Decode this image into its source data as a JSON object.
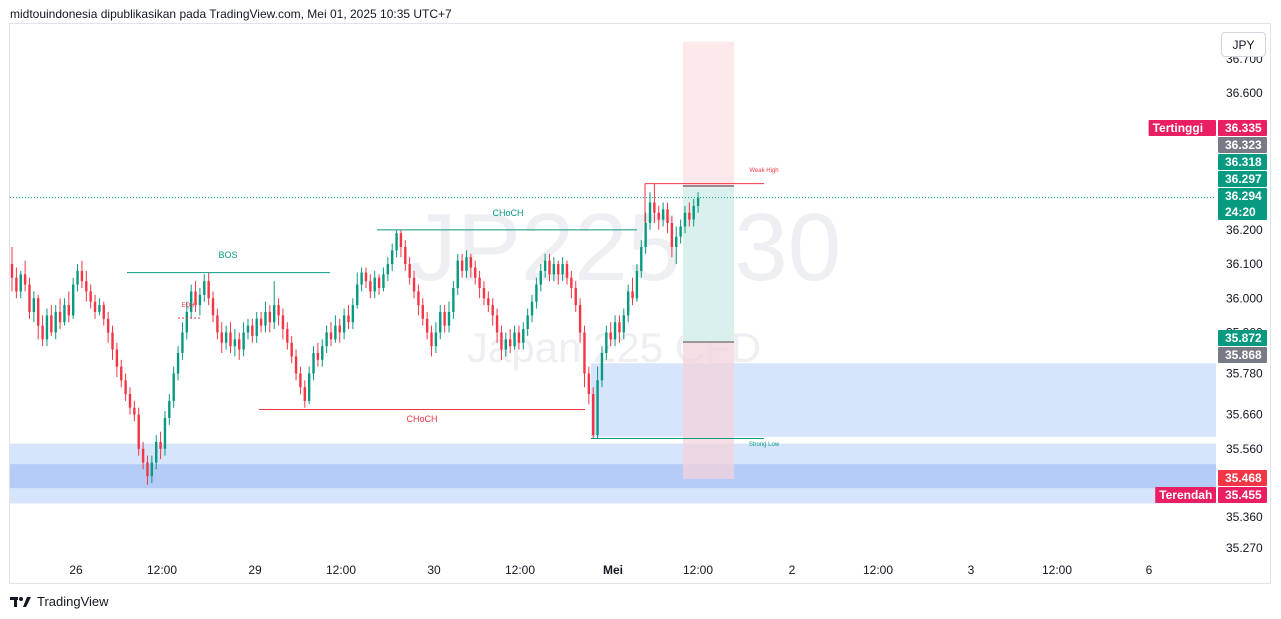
{
  "header": {
    "text": "midtouindonesia dipublikasikan pada TradingView.com, Mei 01, 2025 10:35 UTC+7"
  },
  "currency_button": {
    "label": "JPY"
  },
  "watermark": {
    "symbol": "JP225, 30",
    "description": "Japan 225 CFD"
  },
  "footer": {
    "brand": "TradingView"
  },
  "colors": {
    "up": "#089981",
    "down": "#f23645",
    "bos": "#089981",
    "choch_bear": "#f23645",
    "zone": "#d6e4fc",
    "zone_strong": "#b5cbf8",
    "take_profit": "#d9f0ec",
    "stop_loss": "#fde8ea",
    "tertinggi": "#e91e63",
    "last_price": "#089981",
    "gray_tag": "#787b86"
  },
  "chart_data": {
    "type": "candlestick",
    "instrument": "JP225",
    "timeframe": "30",
    "y_axis": {
      "min": 35.27,
      "max": 36.7,
      "ticks": [
        35.27,
        35.36,
        35.56,
        35.66,
        35.78,
        35.9,
        36.0,
        36.1,
        36.2,
        36.6,
        36.7
      ]
    },
    "y_axis_labels": [
      "35.270",
      "35.360",
      "35.560",
      "35.660",
      "35.780",
      "35.900",
      "36.000",
      "36.100",
      "36.200",
      "36.600",
      "36.700"
    ],
    "x_axis": {
      "ticks": [
        {
          "label": "26",
          "x": 76
        },
        {
          "label": "12:00",
          "x": 162
        },
        {
          "label": "29",
          "x": 255
        },
        {
          "label": "12:00",
          "x": 341
        },
        {
          "label": "30",
          "x": 434
        },
        {
          "label": "12:00",
          "x": 520
        },
        {
          "label": "Mei",
          "x": 613,
          "bold": true
        },
        {
          "label": "12:00",
          "x": 698
        },
        {
          "label": "2",
          "x": 792
        },
        {
          "label": "12:00",
          "x": 878
        },
        {
          "label": "3",
          "x": 971
        },
        {
          "label": "12:00",
          "x": 1057
        },
        {
          "label": "6",
          "x": 1149
        }
      ]
    },
    "price_tags": [
      {
        "label": "Tertinggi",
        "value": "36.335",
        "price": 36.335,
        "color": "#e91e63"
      },
      {
        "value": "36.323",
        "price": 36.323,
        "color": "#787b86"
      },
      {
        "value": "36.318",
        "price": 36.318,
        "color": "#089981"
      },
      {
        "value": "36.297",
        "price": 36.297,
        "color": "#089981"
      },
      {
        "value": "36.294",
        "price": 36.294,
        "color": "#089981",
        "sub": "24:20"
      },
      {
        "value": "35.872",
        "price": 35.872,
        "color": "#089981"
      },
      {
        "value": "35.868",
        "price": 35.868,
        "color": "#787b86"
      },
      {
        "value": "35.468",
        "price": 35.468,
        "color": "#f23645"
      },
      {
        "label": "Terendah",
        "value": "35.455",
        "price": 35.455,
        "color": "#e91e63"
      }
    ],
    "annotations": [
      {
        "text": "BOS",
        "color": "#089981"
      },
      {
        "text": "EQH",
        "color": "#f23645"
      },
      {
        "text": "CHoCH",
        "color": "#089981"
      },
      {
        "text": "CHoCH",
        "color": "#f23645"
      },
      {
        "text": "Weak High",
        "color": "#f23645"
      },
      {
        "text": "Strong Low",
        "color": "#089981"
      }
    ],
    "structure_lines": [
      {
        "name": "bos-line",
        "price": 36.075,
        "color": "#089981"
      },
      {
        "name": "choch-bull-line",
        "price": 36.2,
        "color": "#089981"
      },
      {
        "name": "choch-bear-line",
        "price": 35.675,
        "color": "#f23645"
      },
      {
        "name": "weak-high-line",
        "price": 36.335,
        "color": "#f23645"
      },
      {
        "name": "strong-low-line",
        "price": 35.59,
        "color": "#089981"
      }
    ],
    "zones": [
      {
        "name": "demand-zone-upper",
        "from": 35.81,
        "to": 35.595
      },
      {
        "name": "demand-zone-lower",
        "from": 35.575,
        "to": 35.4
      },
      {
        "name": "demand-zone-strong",
        "from": 35.515,
        "to": 35.445
      }
    ],
    "position": {
      "entry": 35.872,
      "take_profit": 36.323,
      "stop_loss": 35.468,
      "box_top": 36.75
    },
    "current_price": 36.294,
    "candles": [
      [
        36.1,
        36.06,
        36.15,
        36.02
      ],
      [
        36.06,
        36.02,
        36.09,
        36.0
      ],
      [
        36.02,
        36.07,
        36.08,
        36.0
      ],
      [
        36.07,
        36.04,
        36.11,
        36.02
      ],
      [
        36.04,
        35.96,
        36.06,
        35.94
      ],
      [
        35.96,
        36.0,
        36.02,
        35.93
      ],
      [
        36.0,
        35.92,
        36.01,
        35.88
      ],
      [
        35.92,
        35.88,
        35.95,
        35.86
      ],
      [
        35.88,
        35.95,
        35.97,
        35.86
      ],
      [
        35.95,
        35.9,
        35.98,
        35.89
      ],
      [
        35.9,
        35.96,
        35.98,
        35.88
      ],
      [
        35.96,
        35.93,
        36.0,
        35.91
      ],
      [
        35.93,
        35.98,
        36.0,
        35.92
      ],
      [
        35.98,
        35.95,
        36.02,
        35.93
      ],
      [
        35.95,
        36.04,
        36.06,
        35.94
      ],
      [
        36.04,
        36.08,
        36.1,
        36.02
      ],
      [
        36.08,
        36.05,
        36.11,
        36.03
      ],
      [
        36.05,
        36.02,
        36.08,
        35.99
      ],
      [
        36.02,
        35.99,
        36.04,
        35.97
      ],
      [
        35.99,
        35.96,
        36.01,
        35.94
      ],
      [
        35.96,
        35.98,
        36.0,
        35.95
      ],
      [
        35.98,
        35.94,
        35.99,
        35.92
      ],
      [
        35.94,
        35.9,
        35.96,
        35.87
      ],
      [
        35.9,
        35.85,
        35.92,
        35.82
      ],
      [
        35.85,
        35.8,
        35.87,
        35.77
      ],
      [
        35.8,
        35.76,
        35.82,
        35.74
      ],
      [
        35.76,
        35.72,
        35.78,
        35.7
      ],
      [
        35.72,
        35.68,
        35.74,
        35.66
      ],
      [
        35.68,
        35.66,
        35.7,
        35.64
      ],
      [
        35.66,
        35.56,
        35.68,
        35.54
      ],
      [
        35.56,
        35.52,
        35.58,
        35.5
      ],
      [
        35.52,
        35.48,
        35.54,
        35.455
      ],
      [
        35.48,
        35.52,
        35.54,
        35.46
      ],
      [
        35.52,
        35.58,
        35.6,
        35.5
      ],
      [
        35.58,
        35.56,
        35.61,
        35.53
      ],
      [
        35.56,
        35.65,
        35.67,
        35.54
      ],
      [
        35.65,
        35.7,
        35.72,
        35.63
      ],
      [
        35.7,
        35.78,
        35.8,
        35.68
      ],
      [
        35.78,
        35.84,
        35.86,
        35.76
      ],
      [
        35.84,
        35.9,
        35.93,
        35.82
      ],
      [
        35.9,
        35.96,
        35.99,
        35.88
      ],
      [
        35.96,
        36.02,
        36.04,
        35.94
      ],
      [
        36.02,
        35.98,
        36.05,
        35.96
      ],
      [
        35.98,
        36.01,
        36.03,
        35.95
      ],
      [
        36.01,
        36.05,
        36.07,
        35.99
      ],
      [
        36.05,
        36.0,
        36.075,
        35.98
      ],
      [
        36.0,
        35.95,
        36.02,
        35.93
      ],
      [
        35.95,
        35.9,
        35.97,
        35.88
      ],
      [
        35.9,
        35.87,
        35.93,
        35.84
      ],
      [
        35.87,
        35.9,
        35.92,
        35.85
      ],
      [
        35.9,
        35.86,
        35.93,
        35.84
      ],
      [
        35.86,
        35.88,
        35.91,
        35.83
      ],
      [
        35.88,
        35.85,
        35.9,
        35.82
      ],
      [
        35.85,
        35.9,
        35.93,
        35.83
      ],
      [
        35.9,
        35.92,
        35.94,
        35.88
      ],
      [
        35.92,
        35.89,
        35.94,
        35.87
      ],
      [
        35.89,
        35.94,
        35.96,
        35.87
      ],
      [
        35.94,
        35.92,
        35.96,
        35.9
      ],
      [
        35.92,
        35.96,
        35.99,
        35.9
      ],
      [
        35.96,
        35.93,
        35.98,
        35.9
      ],
      [
        35.93,
        35.98,
        36.05,
        35.91
      ],
      [
        35.98,
        35.95,
        36.0,
        35.92
      ],
      [
        35.95,
        35.91,
        35.97,
        35.88
      ],
      [
        35.91,
        35.87,
        35.93,
        35.85
      ],
      [
        35.87,
        35.83,
        35.89,
        35.81
      ],
      [
        35.83,
        35.78,
        35.85,
        35.76
      ],
      [
        35.78,
        35.74,
        35.8,
        35.72
      ],
      [
        35.74,
        35.7,
        35.76,
        35.68
      ],
      [
        35.7,
        35.78,
        35.8,
        35.69
      ],
      [
        35.78,
        35.84,
        35.86,
        35.76
      ],
      [
        35.84,
        35.82,
        35.87,
        35.8
      ],
      [
        35.82,
        35.86,
        35.88,
        35.8
      ],
      [
        35.86,
        35.9,
        35.92,
        35.84
      ],
      [
        35.9,
        35.88,
        35.93,
        35.86
      ],
      [
        35.88,
        35.92,
        35.95,
        35.87
      ],
      [
        35.92,
        35.9,
        35.94,
        35.87
      ],
      [
        35.9,
        35.95,
        35.97,
        35.88
      ],
      [
        35.95,
        35.93,
        35.98,
        35.91
      ],
      [
        35.93,
        35.98,
        36.0,
        35.91
      ],
      [
        35.98,
        36.04,
        36.075,
        35.97
      ],
      [
        36.04,
        36.075,
        36.09,
        36.02
      ],
      [
        36.075,
        36.05,
        36.09,
        36.03
      ],
      [
        36.05,
        36.02,
        36.07,
        36.0
      ],
      [
        36.02,
        36.06,
        36.08,
        36.0
      ],
      [
        36.06,
        36.03,
        36.07,
        36.01
      ],
      [
        36.03,
        36.07,
        36.09,
        36.02
      ],
      [
        36.07,
        36.1,
        36.12,
        36.05
      ],
      [
        36.1,
        36.14,
        36.16,
        36.08
      ],
      [
        36.14,
        36.19,
        36.2,
        36.12
      ],
      [
        36.19,
        36.15,
        36.2,
        36.12
      ],
      [
        36.15,
        36.1,
        36.17,
        36.08
      ],
      [
        36.1,
        36.06,
        36.12,
        36.04
      ],
      [
        36.06,
        36.02,
        36.08,
        36.0
      ],
      [
        36.02,
        35.98,
        36.04,
        35.95
      ],
      [
        35.98,
        35.94,
        36.0,
        35.92
      ],
      [
        35.94,
        35.9,
        35.96,
        35.88
      ],
      [
        35.9,
        35.86,
        35.92,
        35.83
      ],
      [
        35.86,
        35.9,
        35.93,
        35.84
      ],
      [
        35.9,
        35.96,
        35.98,
        35.88
      ],
      [
        35.96,
        35.92,
        35.98,
        35.9
      ],
      [
        35.92,
        35.96,
        35.99,
        35.9
      ],
      [
        35.96,
        36.03,
        36.05,
        35.94
      ],
      [
        36.03,
        36.11,
        36.13,
        36.01
      ],
      [
        36.11,
        36.08,
        36.13,
        36.06
      ],
      [
        36.08,
        36.12,
        36.14,
        36.06
      ],
      [
        36.12,
        36.09,
        36.13,
        36.06
      ],
      [
        36.09,
        36.06,
        36.11,
        36.04
      ],
      [
        36.06,
        36.03,
        36.08,
        36.0
      ],
      [
        36.03,
        36.0,
        36.05,
        35.98
      ],
      [
        36.0,
        35.98,
        36.02,
        35.96
      ],
      [
        35.98,
        35.95,
        36.0,
        35.92
      ],
      [
        35.95,
        35.9,
        35.97,
        35.87
      ],
      [
        35.9,
        35.85,
        35.92,
        35.82
      ],
      [
        35.85,
        35.88,
        35.9,
        35.83
      ],
      [
        35.88,
        35.86,
        35.91,
        35.84
      ],
      [
        35.86,
        35.9,
        35.92,
        35.85
      ],
      [
        35.9,
        35.87,
        35.92,
        35.85
      ],
      [
        35.87,
        35.91,
        35.93,
        35.85
      ],
      [
        35.91,
        35.95,
        35.97,
        35.89
      ],
      [
        35.95,
        35.99,
        36.01,
        35.93
      ],
      [
        35.99,
        36.04,
        36.06,
        35.97
      ],
      [
        36.04,
        36.08,
        36.1,
        36.02
      ],
      [
        36.08,
        36.11,
        36.13,
        36.06
      ],
      [
        36.11,
        36.07,
        36.13,
        36.05
      ],
      [
        36.07,
        36.1,
        36.12,
        36.05
      ],
      [
        36.1,
        36.07,
        36.11,
        36.04
      ],
      [
        36.07,
        36.1,
        36.12,
        36.05
      ],
      [
        36.1,
        36.06,
        36.11,
        36.04
      ],
      [
        36.06,
        36.03,
        36.08,
        36.0
      ],
      [
        36.03,
        35.98,
        36.05,
        35.96
      ],
      [
        35.98,
        35.9,
        36.0,
        35.87
      ],
      [
        35.9,
        35.78,
        35.92,
        35.74
      ],
      [
        35.78,
        35.72,
        35.8,
        35.69
      ],
      [
        35.72,
        35.6,
        35.74,
        35.59
      ],
      [
        35.6,
        35.76,
        35.8,
        35.59
      ],
      [
        35.76,
        35.84,
        35.86,
        35.74
      ],
      [
        35.84,
        35.9,
        35.92,
        35.82
      ],
      [
        35.9,
        35.88,
        35.93,
        35.86
      ],
      [
        35.88,
        35.93,
        35.95,
        35.86
      ],
      [
        35.93,
        35.9,
        35.95,
        35.87
      ],
      [
        35.9,
        35.95,
        35.97,
        35.88
      ],
      [
        35.95,
        36.02,
        36.04,
        35.93
      ],
      [
        36.02,
        36.0,
        36.06,
        35.98
      ],
      [
        36.0,
        36.08,
        36.1,
        35.99
      ],
      [
        36.08,
        36.15,
        36.17,
        36.06
      ],
      [
        36.15,
        36.22,
        36.25,
        36.13
      ],
      [
        36.22,
        36.28,
        36.31,
        36.2
      ],
      [
        36.28,
        36.25,
        36.335,
        36.22
      ],
      [
        36.25,
        36.23,
        36.27,
        36.2
      ],
      [
        36.23,
        36.26,
        36.28,
        36.21
      ],
      [
        36.26,
        36.22,
        36.28,
        36.19
      ],
      [
        36.22,
        36.15,
        36.24,
        36.12
      ],
      [
        36.15,
        36.18,
        36.21,
        36.1
      ],
      [
        36.18,
        36.21,
        36.23,
        36.16
      ],
      [
        36.21,
        36.25,
        36.27,
        36.19
      ],
      [
        36.25,
        36.23,
        36.28,
        36.21
      ],
      [
        36.23,
        36.27,
        36.29,
        36.21
      ],
      [
        36.27,
        36.294,
        36.31,
        36.25
      ]
    ]
  }
}
